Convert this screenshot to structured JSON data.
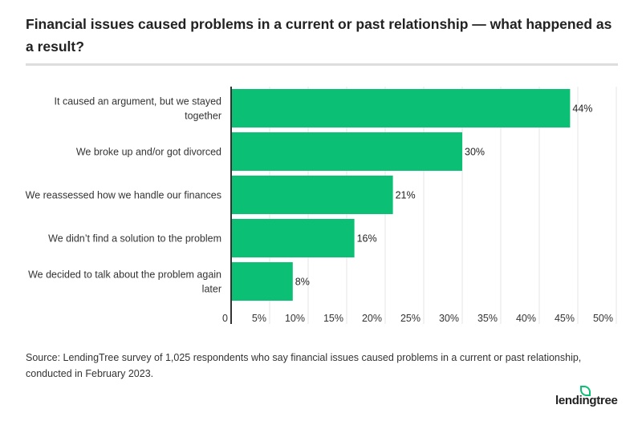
{
  "title": "Financial issues caused problems in a current or past relationship — what happened as a result?",
  "source": "Source: LendingTree survey of 1,025 respondents who say financial issues caused problems in a current or past relationship, conducted in February 2023.",
  "logo_text": "lendingtree",
  "colors": {
    "bar": "#0bbf74",
    "grid": "#e6e6e6",
    "axis": "#333333"
  },
  "chart_data": {
    "type": "bar",
    "orientation": "horizontal",
    "title": "Financial issues caused problems in a current or past relationship — what happened as a result?",
    "categories": [
      [
        "It caused an argument, but we stayed",
        "together"
      ],
      [
        "We broke up and/or got divorced"
      ],
      [
        "We reassessed how we handle our finances"
      ],
      [
        "We didn’t find a solution to the problem"
      ],
      [
        "We decided to talk about the problem again",
        "later"
      ]
    ],
    "values": [
      44,
      30,
      21,
      16,
      8
    ],
    "value_labels": [
      "44%",
      "30%",
      "21%",
      "16%",
      "8%"
    ],
    "xlim": [
      0,
      50
    ],
    "xticks": [
      0,
      5,
      10,
      15,
      20,
      25,
      30,
      35,
      40,
      45,
      50
    ],
    "xtick_labels": [
      "0",
      "5%",
      "10%",
      "15%",
      "20%",
      "25%",
      "30%",
      "35%",
      "40%",
      "45%",
      "50%"
    ],
    "grid": true,
    "legend": "none"
  }
}
